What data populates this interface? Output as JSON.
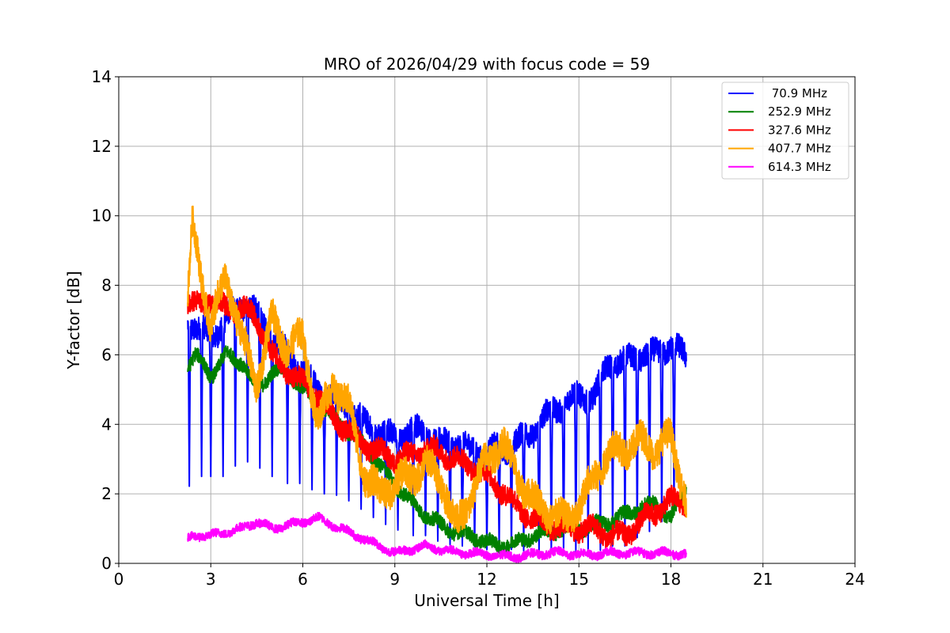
{
  "chart_data": {
    "type": "line",
    "title": "MRO of 2026/04/29 with focus code = 59",
    "xlabel": "Universal Time [h]",
    "ylabel": "Y-factor [dB]",
    "xlim": [
      0,
      24
    ],
    "ylim": [
      0,
      14
    ],
    "xticks": [
      0,
      3,
      6,
      9,
      12,
      15,
      18,
      21,
      24
    ],
    "yticks": [
      0,
      2,
      4,
      6,
      8,
      10,
      12,
      14
    ],
    "grid": true,
    "legend_position": "top-right",
    "series": [
      {
        "name": " 70.9 MHz",
        "color": "#0000ff",
        "x": [
          2.25,
          2.5,
          3.0,
          3.5,
          4.0,
          4.5,
          5.0,
          5.5,
          6.0,
          6.5,
          7.0,
          7.5,
          8.0,
          8.5,
          9.0,
          9.5,
          10.0,
          10.5,
          11.0,
          11.5,
          12.0,
          12.5,
          13.0,
          13.5,
          14.0,
          14.5,
          15.0,
          15.5,
          16.0,
          16.5,
          17.0,
          17.5,
          18.0,
          18.5
        ],
        "values": [
          7.0,
          6.8,
          6.5,
          7.0,
          7.5,
          7.2,
          6.5,
          6.0,
          5.5,
          5.0,
          4.8,
          4.5,
          4.0,
          3.8,
          3.6,
          3.8,
          3.8,
          3.4,
          3.5,
          3.2,
          3.2,
          3.3,
          3.5,
          3.8,
          4.3,
          4.6,
          4.8,
          4.8,
          5.8,
          5.8,
          6.0,
          6.0,
          6.3,
          5.9
        ],
        "dips": [
          2.15,
          2.5,
          2.5,
          2.5,
          3.0,
          2.8,
          2.5,
          2.3,
          2.3,
          2.0,
          2.0,
          1.8,
          1.5,
          1.2,
          1.0,
          0.8,
          0.8,
          0.6,
          0.5,
          0.5,
          0.4,
          0.4,
          0.4,
          0.3,
          0.3,
          0.3,
          0.3,
          0.3,
          0.5,
          0.5,
          0.8,
          1.0,
          1.5,
          2.0
        ],
        "dip_times": [
          2.3,
          2.7,
          3.0,
          3.4,
          3.8,
          4.2,
          4.6,
          5.0,
          5.5,
          5.9,
          6.3,
          6.7,
          7.1,
          7.5,
          7.9,
          8.3,
          8.7,
          9.1,
          9.6,
          10.0,
          10.4,
          10.8,
          11.2,
          11.6,
          12.0,
          12.4,
          12.8,
          13.2,
          13.7,
          14.1,
          14.5,
          14.9,
          15.3,
          15.7,
          16.1,
          16.5,
          16.9,
          17.3,
          17.7,
          18.1
        ]
      },
      {
        "name": "252.9 MHz",
        "color": "#008000",
        "x": [
          2.25,
          2.5,
          3.0,
          3.5,
          4.0,
          4.5,
          5.0,
          5.5,
          6.0,
          6.5,
          7.0,
          7.5,
          8.0,
          8.5,
          9.0,
          9.5,
          10.0,
          10.5,
          11.0,
          11.5,
          12.0,
          12.5,
          13.0,
          13.5,
          14.0,
          14.5,
          15.0,
          15.5,
          16.0,
          16.5,
          17.0,
          17.5,
          18.0,
          18.5
        ],
        "values": [
          5.7,
          6.0,
          5.4,
          6.0,
          5.8,
          5.0,
          5.5,
          5.5,
          5.0,
          4.6,
          4.2,
          3.8,
          3.4,
          2.8,
          2.3,
          1.8,
          1.4,
          1.1,
          0.9,
          0.8,
          0.6,
          0.5,
          0.6,
          0.8,
          0.9,
          1.0,
          1.0,
          1.1,
          1.2,
          1.4,
          1.6,
          1.7,
          1.3,
          2.2
        ]
      },
      {
        "name": "327.6 MHz",
        "color": "#ff0000",
        "x": [
          2.25,
          2.5,
          3.0,
          3.5,
          4.0,
          4.5,
          5.0,
          5.5,
          6.0,
          6.5,
          7.0,
          7.5,
          8.0,
          8.5,
          9.0,
          9.5,
          10.0,
          10.5,
          11.0,
          11.5,
          12.0,
          12.5,
          13.0,
          13.5,
          14.0,
          14.5,
          15.0,
          15.5,
          16.0,
          16.5,
          17.0,
          17.5,
          18.0,
          18.5
        ],
        "values": [
          7.5,
          7.4,
          7.6,
          7.3,
          7.4,
          7.0,
          6.0,
          5.5,
          5.2,
          4.8,
          4.2,
          3.8,
          3.4,
          3.2,
          3.0,
          3.1,
          3.3,
          3.2,
          3.0,
          2.8,
          2.5,
          2.1,
          1.6,
          1.3,
          1.1,
          1.0,
          1.0,
          1.0,
          0.8,
          0.8,
          1.2,
          1.5,
          1.8,
          1.8
        ]
      },
      {
        "name": "407.7 MHz",
        "color": "#ffa500",
        "x": [
          2.25,
          2.4,
          2.6,
          3.0,
          3.5,
          4.0,
          4.5,
          5.0,
          5.5,
          6.0,
          6.5,
          7.0,
          7.5,
          8.0,
          8.5,
          9.0,
          9.5,
          10.0,
          10.5,
          11.0,
          11.5,
          12.0,
          12.5,
          13.0,
          13.5,
          14.0,
          14.5,
          15.0,
          15.5,
          16.0,
          16.5,
          17.0,
          17.5,
          18.0,
          18.5
        ],
        "values": [
          7.6,
          9.7,
          8.8,
          6.8,
          8.3,
          6.5,
          5.2,
          7.0,
          6.2,
          6.5,
          4.0,
          5.2,
          4.5,
          2.6,
          2.0,
          2.3,
          2.5,
          2.8,
          2.5,
          1.0,
          2.0,
          3.0,
          3.5,
          2.5,
          1.8,
          1.5,
          1.2,
          1.6,
          2.5,
          3.2,
          3.3,
          3.5,
          3.3,
          3.6,
          1.8
        ]
      },
      {
        "name": "614.3 MHz",
        "color": "#ff00ff",
        "x": [
          2.25,
          2.5,
          3.0,
          3.5,
          4.0,
          4.5,
          5.0,
          5.5,
          6.0,
          6.5,
          7.0,
          7.5,
          8.0,
          8.5,
          9.0,
          9.5,
          10.0,
          10.5,
          11.0,
          11.5,
          12.0,
          12.5,
          13.0,
          13.5,
          14.0,
          14.5,
          15.0,
          15.5,
          16.0,
          16.5,
          17.0,
          17.5,
          18.0,
          18.5
        ],
        "values": [
          0.7,
          0.8,
          0.8,
          0.9,
          1.0,
          1.2,
          1.0,
          1.1,
          1.2,
          1.3,
          1.1,
          0.9,
          0.7,
          0.5,
          0.3,
          0.4,
          0.5,
          0.4,
          0.3,
          0.3,
          0.25,
          0.2,
          0.2,
          0.25,
          0.3,
          0.3,
          0.25,
          0.25,
          0.3,
          0.3,
          0.3,
          0.3,
          0.3,
          0.25
        ]
      }
    ]
  }
}
